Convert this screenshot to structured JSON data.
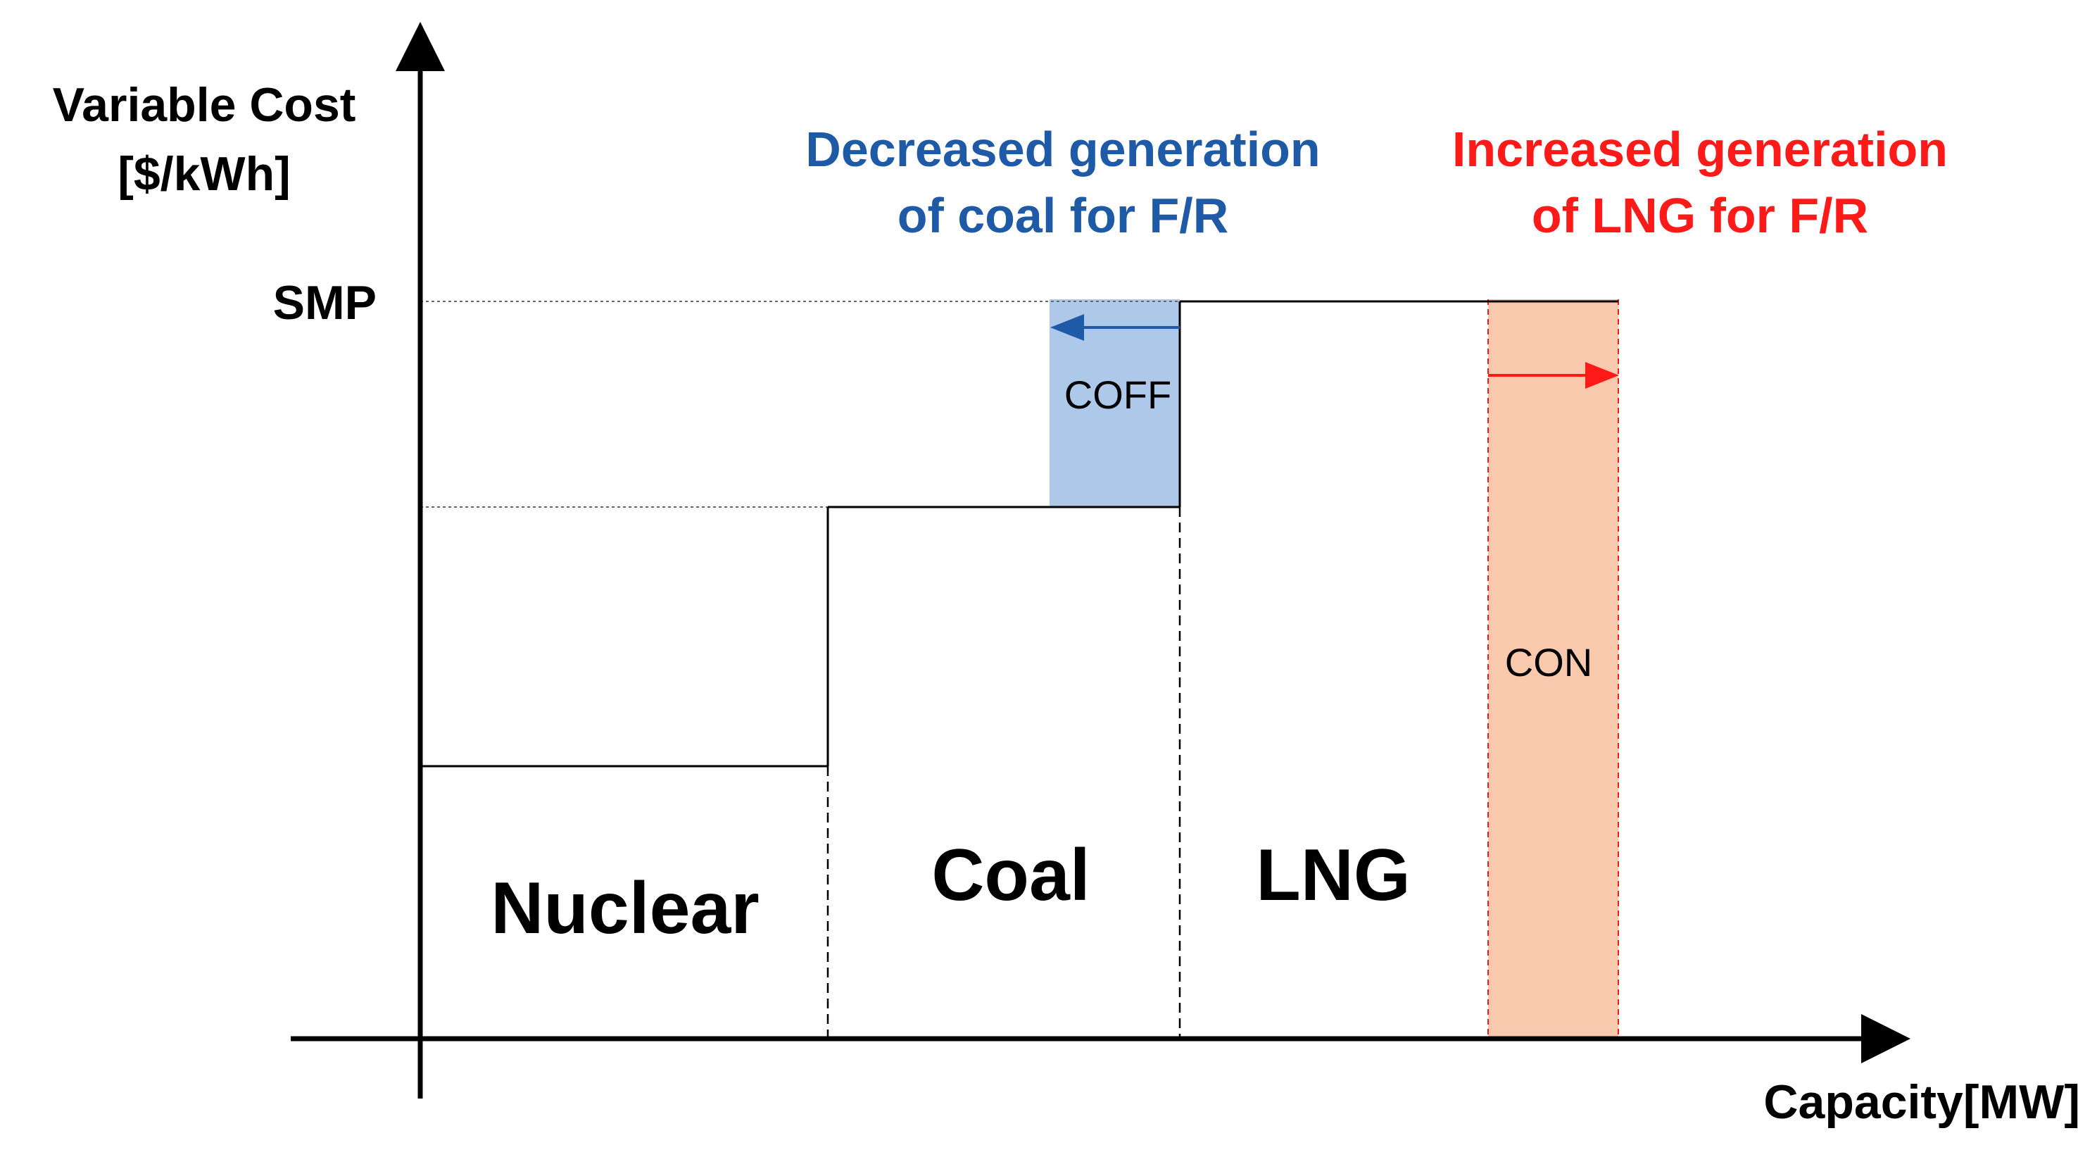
{
  "y_axis": {
    "label_line1": "Variable Cost",
    "label_line2": "[$/kWh]"
  },
  "x_axis": {
    "label": "Capacity[MW]"
  },
  "smp_label": "SMP",
  "blocks": [
    {
      "name": "Nuclear",
      "label": "Nuclear"
    },
    {
      "name": "Coal",
      "label": "Coal"
    },
    {
      "name": "LNG",
      "label": "LNG"
    }
  ],
  "coff": {
    "label": "COFF",
    "color": "#AEC8E9"
  },
  "con": {
    "label": "CON",
    "color": "#F8C9AC"
  },
  "annotations": {
    "decreased": {
      "line1": "Decreased generation",
      "line2": "of coal for F/R",
      "color": "#1F5AA6"
    },
    "increased": {
      "line1": "Increased generation",
      "line2": "of LNG for F/R",
      "color": "#FF1A1A"
    }
  },
  "colors": {
    "line": "#000000",
    "dashed": "#666666",
    "blue_arrow": "#1F5AA6",
    "red_arrow": "#FF1A1A"
  }
}
